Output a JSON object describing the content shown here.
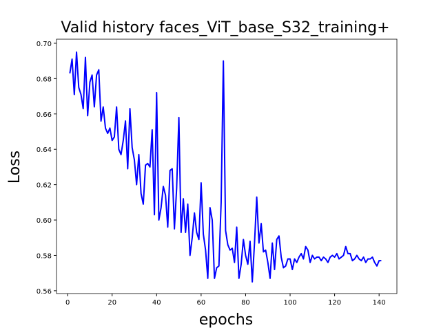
{
  "chart_data": {
    "type": "line",
    "title": "Valid history faces_ViT_base_S32_training+",
    "x_label": "epochs",
    "y_label": "Loss",
    "x": [
      1,
      2,
      3,
      4,
      5,
      6,
      7,
      8,
      9,
      10,
      11,
      12,
      13,
      14,
      15,
      16,
      17,
      18,
      19,
      20,
      21,
      22,
      23,
      24,
      25,
      26,
      27,
      28,
      29,
      30,
      31,
      32,
      33,
      34,
      35,
      36,
      37,
      38,
      39,
      40,
      41,
      42,
      43,
      44,
      45,
      46,
      47,
      48,
      49,
      50,
      51,
      52,
      53,
      54,
      55,
      56,
      57,
      58,
      59,
      60,
      61,
      62,
      63,
      64,
      65,
      66,
      67,
      68,
      69,
      70,
      71,
      72,
      73,
      74,
      75,
      76,
      77,
      78,
      79,
      80,
      81,
      82,
      83,
      84,
      85,
      86,
      87,
      88,
      89,
      90,
      91,
      92,
      93,
      94,
      95,
      96,
      97,
      98,
      99,
      100,
      101,
      102,
      103,
      104,
      105,
      106,
      107,
      108,
      109,
      110,
      111,
      112,
      113,
      114,
      115,
      116,
      117,
      118,
      119,
      120,
      121,
      122,
      123,
      124,
      125,
      126,
      127,
      128,
      129,
      130,
      131,
      132,
      133,
      134,
      135,
      136,
      137,
      138,
      139,
      140,
      141
    ],
    "series": [
      {
        "color": "#0000ff",
        "values": [
          0.683,
          0.691,
          0.671,
          0.695,
          0.675,
          0.671,
          0.663,
          0.692,
          0.659,
          0.678,
          0.682,
          0.664,
          0.682,
          0.685,
          0.656,
          0.664,
          0.652,
          0.649,
          0.652,
          0.645,
          0.647,
          0.664,
          0.64,
          0.637,
          0.645,
          0.656,
          0.629,
          0.663,
          0.641,
          0.634,
          0.62,
          0.637,
          0.615,
          0.609,
          0.631,
          0.632,
          0.63,
          0.651,
          0.603,
          0.672,
          0.6,
          0.607,
          0.619,
          0.614,
          0.596,
          0.628,
          0.629,
          0.595,
          0.618,
          0.658,
          0.593,
          0.612,
          0.593,
          0.609,
          0.58,
          0.59,
          0.604,
          0.593,
          0.589,
          0.621,
          0.592,
          0.583,
          0.567,
          0.607,
          0.6,
          0.567,
          0.573,
          0.574,
          0.61,
          0.69,
          0.594,
          0.586,
          0.583,
          0.584,
          0.576,
          0.596,
          0.567,
          0.575,
          0.589,
          0.58,
          0.575,
          0.588,
          0.565,
          0.587,
          0.613,
          0.587,
          0.598,
          0.582,
          0.583,
          0.576,
          0.567,
          0.587,
          0.572,
          0.589,
          0.591,
          0.579,
          0.573,
          0.574,
          0.578,
          0.578,
          0.572,
          0.578,
          0.576,
          0.579,
          0.581,
          0.578,
          0.585,
          0.583,
          0.576,
          0.58,
          0.578,
          0.579,
          0.579,
          0.577,
          0.579,
          0.578,
          0.576,
          0.579,
          0.58,
          0.579,
          0.581,
          0.578,
          0.579,
          0.58,
          0.585,
          0.581,
          0.581,
          0.577,
          0.578,
          0.58,
          0.578,
          0.577,
          0.579,
          0.576,
          0.578,
          0.578,
          0.579,
          0.576,
          0.574,
          0.577,
          0.577
        ]
      }
    ],
    "xlim": [
      -5,
      148
    ],
    "ylim": [
      0.5584,
      0.7023
    ],
    "xticks": [
      0,
      20,
      40,
      60,
      80,
      100,
      120,
      140
    ],
    "yticks": [
      0.56,
      0.58,
      {
        "value": 0.6,
        "label": "0.60"
      },
      0.62,
      0.64,
      0.66,
      0.68,
      {
        "value": 0.7,
        "label": "0.70"
      }
    ]
  }
}
